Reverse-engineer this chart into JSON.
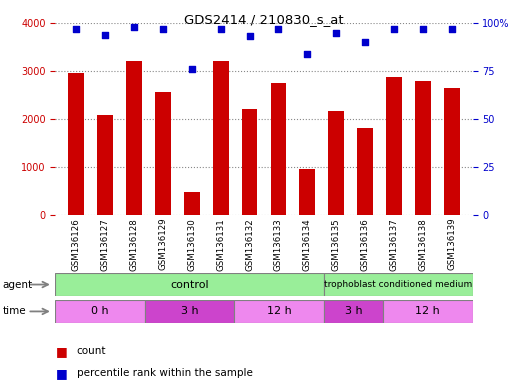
{
  "title": "GDS2414 / 210830_s_at",
  "samples": [
    "GSM136126",
    "GSM136127",
    "GSM136128",
    "GSM136129",
    "GSM136130",
    "GSM136131",
    "GSM136132",
    "GSM136133",
    "GSM136134",
    "GSM136135",
    "GSM136136",
    "GSM136137",
    "GSM136138",
    "GSM136139"
  ],
  "counts": [
    2950,
    2075,
    3200,
    2560,
    470,
    3200,
    2200,
    2750,
    960,
    2175,
    1820,
    2880,
    2800,
    2650
  ],
  "percentiles": [
    97,
    94,
    98,
    97,
    76,
    97,
    93,
    97,
    84,
    95,
    90,
    97,
    97,
    97
  ],
  "bar_color": "#cc0000",
  "dot_color": "#0000cc",
  "ylim_left": [
    0,
    4000
  ],
  "ylim_right": [
    0,
    100
  ],
  "yticks_left": [
    0,
    1000,
    2000,
    3000,
    4000
  ],
  "yticks_right": [
    0,
    25,
    50,
    75,
    100
  ],
  "yticklabels_right": [
    "0",
    "25",
    "50",
    "75",
    "100%"
  ],
  "legend_count_color": "#cc0000",
  "legend_dot_color": "#0000cc",
  "tick_color_left": "#cc0000",
  "tick_color_right": "#0000cc",
  "background_color": "#ffffff",
  "grid_color": "#888888",
  "agent_control_color": "#99ee99",
  "agent_tropho_color": "#99ee99",
  "time_color_light": "#ee88ee",
  "time_color_dark": "#cc44cc"
}
